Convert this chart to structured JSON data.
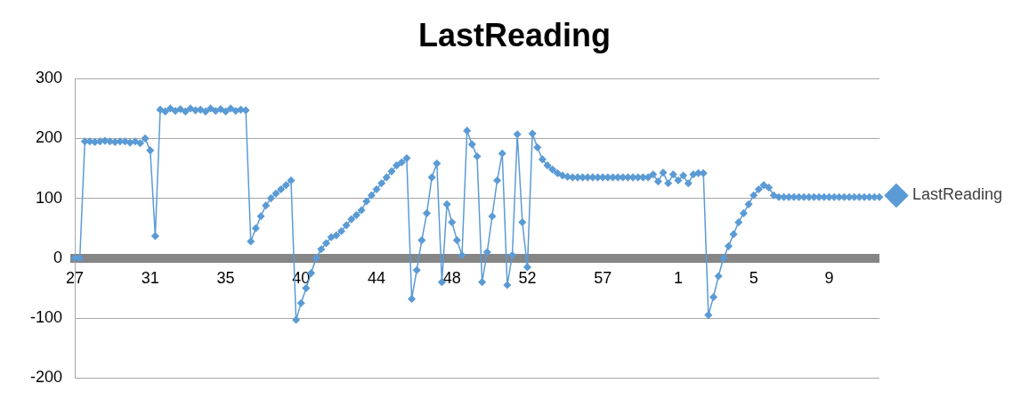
{
  "chart_data": {
    "type": "line",
    "title": "LastReading",
    "categories": [
      "27",
      null,
      null,
      null,
      null,
      null,
      null,
      null,
      null,
      null,
      null,
      null,
      null,
      null,
      null,
      "31",
      null,
      null,
      null,
      null,
      null,
      null,
      null,
      null,
      null,
      null,
      null,
      null,
      null,
      null,
      "35",
      null,
      null,
      null,
      null,
      null,
      null,
      null,
      null,
      null,
      null,
      null,
      null,
      null,
      null,
      "40",
      null,
      null,
      null,
      null,
      null,
      null,
      null,
      null,
      null,
      null,
      null,
      null,
      null,
      null,
      "44",
      null,
      null,
      null,
      null,
      null,
      null,
      null,
      null,
      null,
      null,
      null,
      null,
      null,
      null,
      "48",
      null,
      null,
      null,
      null,
      null,
      null,
      null,
      null,
      null,
      null,
      null,
      null,
      null,
      null,
      "52",
      null,
      null,
      null,
      null,
      null,
      null,
      null,
      null,
      null,
      null,
      null,
      null,
      null,
      null,
      "57",
      null,
      null,
      null,
      null,
      null,
      null,
      null,
      null,
      null,
      null,
      null,
      null,
      null,
      null,
      "1",
      null,
      null,
      null,
      null,
      null,
      null,
      null,
      null,
      null,
      null,
      null,
      null,
      null,
      null,
      "5",
      null,
      null,
      null,
      null,
      null,
      null,
      null,
      null,
      null,
      null,
      null,
      null,
      null,
      null,
      "9",
      null,
      null,
      null,
      null,
      null,
      null,
      null,
      null,
      null,
      null
    ],
    "series": [
      {
        "name": "LastReading",
        "color": "#5b9bd5",
        "values": [
          0,
          0,
          195,
          195,
          194,
          195,
          196,
          195,
          194,
          195,
          195,
          193,
          195,
          192,
          200,
          180,
          37,
          248,
          245,
          250,
          246,
          249,
          245,
          250,
          247,
          248,
          245,
          250,
          246,
          249,
          245,
          250,
          246,
          248,
          247,
          28,
          50,
          70,
          88,
          100,
          108,
          115,
          122,
          130,
          -103,
          -75,
          -50,
          -25,
          0,
          15,
          25,
          35,
          38,
          45,
          55,
          65,
          72,
          80,
          95,
          105,
          115,
          125,
          135,
          145,
          155,
          160,
          167,
          -68,
          -20,
          30,
          75,
          135,
          158,
          -40,
          90,
          60,
          30,
          5,
          213,
          190,
          170,
          -40,
          10,
          70,
          130,
          175,
          -45,
          5,
          207,
          60,
          -15,
          208,
          185,
          165,
          155,
          148,
          142,
          138,
          136,
          135,
          135,
          135,
          135,
          135,
          135,
          135,
          135,
          135,
          135,
          135,
          135,
          135,
          135,
          135,
          135,
          140,
          128,
          143,
          125,
          140,
          130,
          138,
          125,
          140,
          142,
          142,
          -95,
          -65,
          -30,
          0,
          20,
          40,
          60,
          75,
          90,
          105,
          115,
          122,
          118,
          105,
          102,
          102,
          102,
          102,
          102,
          102,
          102,
          102,
          102,
          102,
          102,
          102,
          102,
          102,
          102,
          102,
          102,
          102,
          102,
          102,
          102
        ]
      }
    ],
    "ylim": [
      -200,
      300
    ],
    "yticks": [
      -200,
      -100,
      0,
      100,
      200,
      300
    ],
    "grid": "y",
    "legend": "right",
    "marker": "diamond",
    "line_style": "solid"
  }
}
